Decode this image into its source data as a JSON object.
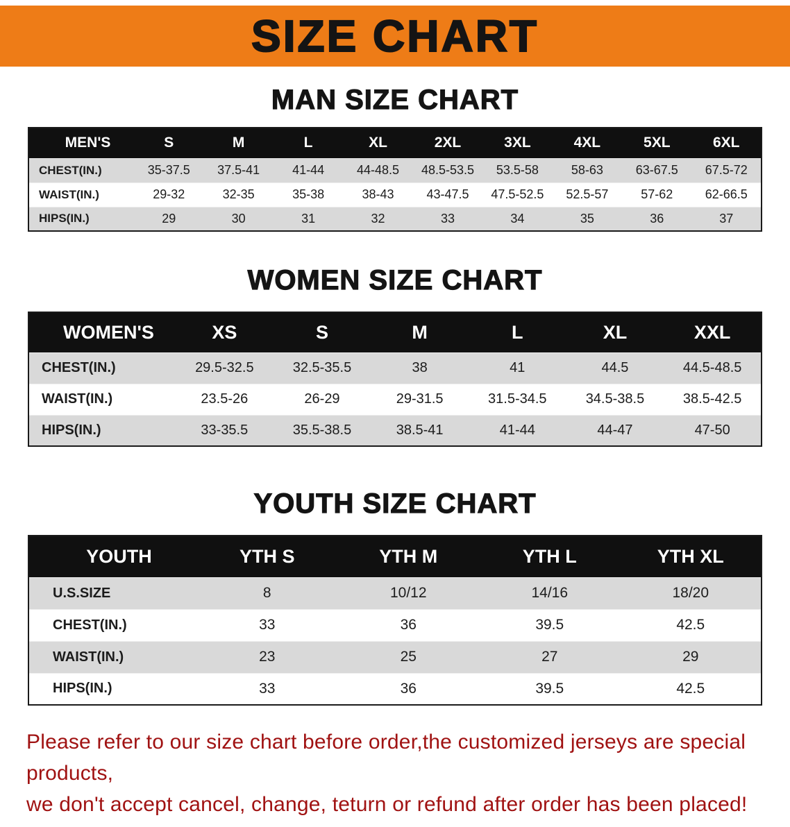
{
  "banner": {
    "title": "SIZE CHART",
    "bg_color": "#ee7c17"
  },
  "colors": {
    "table_header_bg": "#101010",
    "stripe_row_bg": "#d9d9d9",
    "footer_text": "#a01212"
  },
  "sections": [
    {
      "title": "MAN SIZE CHART",
      "table": {
        "header": [
          "MEN'S",
          "S",
          "M",
          "L",
          "XL",
          "2XL",
          "3XL",
          "4XL",
          "5XL",
          "6XL"
        ],
        "rows": [
          [
            "CHEST(IN.)",
            "35-37.5",
            "37.5-41",
            "41-44",
            "44-48.5",
            "48.5-53.5",
            "53.5-58",
            "58-63",
            "63-67.5",
            "67.5-72"
          ],
          [
            "WAIST(IN.)",
            "29-32",
            "32-35",
            "35-38",
            "38-43",
            "43-47.5",
            "47.5-52.5",
            "52.5-57",
            "57-62",
            "62-66.5"
          ],
          [
            "HIPS(IN.)",
            "29",
            "30",
            "31",
            "32",
            "33",
            "34",
            "35",
            "36",
            "37"
          ]
        ]
      }
    },
    {
      "title": "WOMEN SIZE CHART",
      "table": {
        "header": [
          "WOMEN'S",
          "XS",
          "S",
          "M",
          "L",
          "XL",
          "XXL"
        ],
        "rows": [
          [
            "CHEST(IN.)",
            "29.5-32.5",
            "32.5-35.5",
            "38",
            "41",
            "44.5",
            "44.5-48.5"
          ],
          [
            "WAIST(IN.)",
            "23.5-26",
            "26-29",
            "29-31.5",
            "31.5-34.5",
            "34.5-38.5",
            "38.5-42.5"
          ],
          [
            "HIPS(IN.)",
            "33-35.5",
            "35.5-38.5",
            "38.5-41",
            "41-44",
            "44-47",
            "47-50"
          ]
        ]
      }
    },
    {
      "title": "YOUTH SIZE CHART",
      "table": {
        "header": [
          "YOUTH",
          "YTH S",
          "YTH M",
          "YTH L",
          "YTH XL"
        ],
        "rows": [
          [
            "U.S.SIZE",
            "8",
            "10/12",
            "14/16",
            "18/20"
          ],
          [
            "CHEST(IN.)",
            "33",
            "36",
            "39.5",
            "42.5"
          ],
          [
            "WAIST(IN.)",
            "23",
            "25",
            "27",
            "29"
          ],
          [
            "HIPS(IN.)",
            "33",
            "36",
            "39.5",
            "42.5"
          ]
        ]
      }
    }
  ],
  "footer": {
    "lines": [
      "Please refer to our size chart before order,the customized jerseys are special products,",
      "we don't accept cancel, change, teturn or refund after order has been placed!"
    ]
  }
}
